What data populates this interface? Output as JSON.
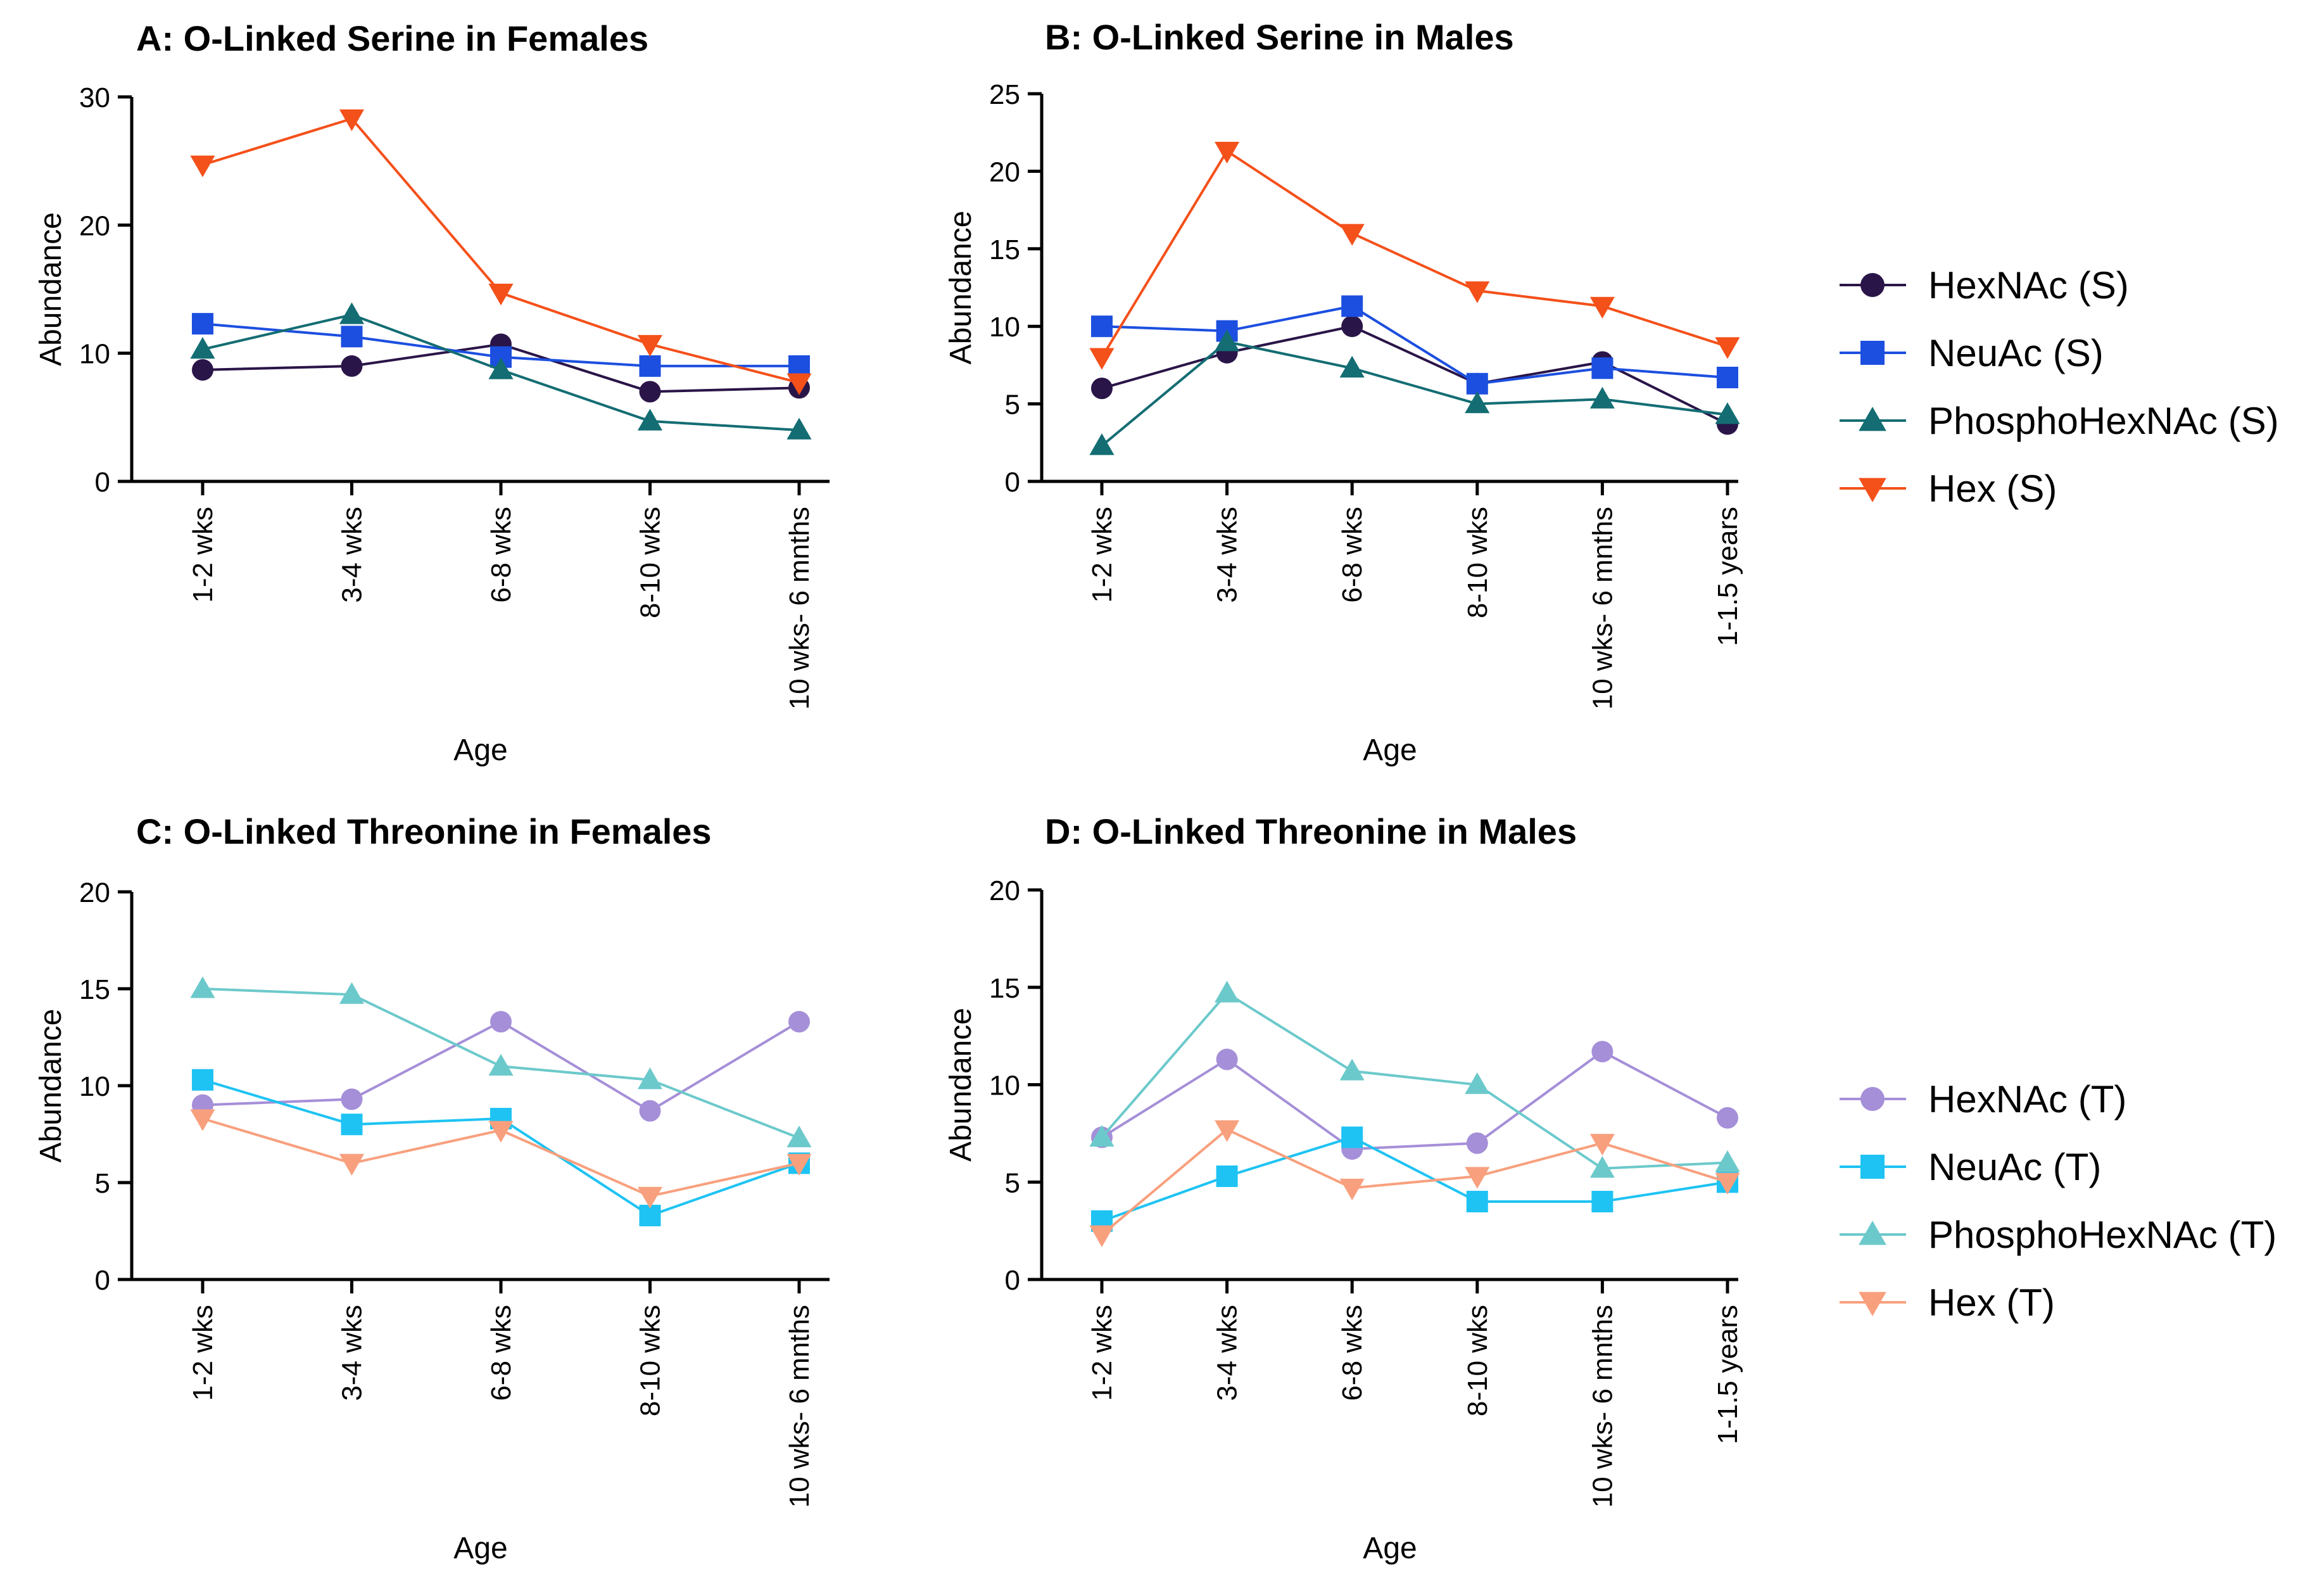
{
  "chart_data": [
    {
      "id": "A",
      "type": "line",
      "title": "A: O-Linked Serine in Females",
      "xlabel": "Age",
      "ylabel": "Abundance",
      "ylim": [
        0,
        30
      ],
      "yticks": [
        0,
        10,
        20,
        30
      ],
      "categories": [
        "1-2 wks",
        "3-4 wks",
        "6-8 wks",
        "8-10 wks",
        "10 wks- 6 mnths"
      ],
      "series": [
        {
          "name": "HexNAc (S)",
          "color": "#2a1548",
          "marker": "circle",
          "values": [
            8.7,
            9.0,
            10.7,
            7.0,
            7.3
          ]
        },
        {
          "name": "NeuAc (S)",
          "color": "#1c4fe0",
          "marker": "square",
          "values": [
            12.3,
            11.3,
            9.7,
            9.0,
            9.0
          ]
        },
        {
          "name": "PhosphoHexNAc (S)",
          "color": "#136d73",
          "marker": "triangle-up",
          "values": [
            10.3,
            13.0,
            8.7,
            4.7,
            4.0
          ]
        },
        {
          "name": "Hex (S)",
          "color": "#f4501a",
          "marker": "triangle-down",
          "values": [
            24.7,
            28.3,
            14.7,
            10.7,
            7.7
          ]
        }
      ]
    },
    {
      "id": "B",
      "type": "line",
      "title": "B: O-Linked Serine in Males",
      "xlabel": "Age",
      "ylabel": "Abundance",
      "ylim": [
        0,
        25
      ],
      "yticks": [
        0,
        5,
        10,
        15,
        20,
        25
      ],
      "categories": [
        "1-2 wks",
        "3-4 wks",
        "6-8 wks",
        "8-10 wks",
        "10 wks- 6 mnths",
        "1-1.5 years"
      ],
      "series": [
        {
          "name": "HexNAc (S)",
          "color": "#2a1548",
          "marker": "circle",
          "values": [
            6.0,
            8.3,
            10.0,
            6.3,
            7.7,
            3.7
          ]
        },
        {
          "name": "NeuAc (S)",
          "color": "#1c4fe0",
          "marker": "square",
          "values": [
            10.0,
            9.7,
            11.3,
            6.3,
            7.3,
            6.7
          ]
        },
        {
          "name": "PhosphoHexNAc (S)",
          "color": "#136d73",
          "marker": "triangle-up",
          "values": [
            2.3,
            9.0,
            7.3,
            5.0,
            5.3,
            4.3
          ]
        },
        {
          "name": "Hex (S)",
          "color": "#f4501a",
          "marker": "triangle-down",
          "values": [
            8.0,
            21.3,
            16.0,
            12.3,
            11.3,
            8.7
          ]
        }
      ],
      "legend": "right"
    },
    {
      "id": "C",
      "type": "line",
      "title": "C: O-Linked Threonine in Females",
      "xlabel": "Age",
      "ylabel": "Abundance",
      "ylim": [
        0,
        20
      ],
      "yticks": [
        0,
        5,
        10,
        15,
        20
      ],
      "categories": [
        "1-2 wks",
        "3-4 wks",
        "6-8 wks",
        "8-10 wks",
        "10 wks- 6 mnths"
      ],
      "series": [
        {
          "name": "HexNAc (T)",
          "color": "#a58fd8",
          "marker": "circle",
          "values": [
            9.0,
            9.3,
            13.3,
            8.7,
            13.3
          ]
        },
        {
          "name": "NeuAc (T)",
          "color": "#1ec3f3",
          "marker": "square",
          "values": [
            10.3,
            8.0,
            8.3,
            3.3,
            6.0
          ]
        },
        {
          "name": "PhosphoHexNAc (T)",
          "color": "#6cc9cb",
          "marker": "triangle-up",
          "values": [
            15.0,
            14.7,
            11.0,
            10.3,
            7.3
          ]
        },
        {
          "name": "Hex (T)",
          "color": "#f8a07e",
          "marker": "triangle-down",
          "values": [
            8.3,
            6.0,
            7.7,
            4.3,
            6.0
          ]
        }
      ]
    },
    {
      "id": "D",
      "type": "line",
      "title": "D: O-Linked Threonine in Males",
      "xlabel": "Age",
      "ylabel": "Abundance",
      "ylim": [
        0,
        20
      ],
      "yticks": [
        0,
        5,
        10,
        15,
        20
      ],
      "categories": [
        "1-2 wks",
        "3-4 wks",
        "6-8 wks",
        "8-10 wks",
        "10 wks- 6 mnths",
        "1-1.5 years"
      ],
      "series": [
        {
          "name": "HexNAc (T)",
          "color": "#a58fd8",
          "marker": "circle",
          "values": [
            7.3,
            11.3,
            6.7,
            7.0,
            11.7,
            8.3
          ]
        },
        {
          "name": "NeuAc (T)",
          "color": "#1ec3f3",
          "marker": "square",
          "values": [
            3.0,
            5.3,
            7.3,
            4.0,
            4.0,
            5.0
          ]
        },
        {
          "name": "PhosphoHexNAc (T)",
          "color": "#6cc9cb",
          "marker": "triangle-up",
          "values": [
            7.3,
            14.7,
            10.7,
            10.0,
            5.7,
            6.0
          ]
        },
        {
          "name": "Hex (T)",
          "color": "#f8a07e",
          "marker": "triangle-down",
          "values": [
            2.3,
            7.7,
            4.7,
            5.3,
            7.0,
            5.0
          ]
        }
      ],
      "legend": "right"
    }
  ]
}
